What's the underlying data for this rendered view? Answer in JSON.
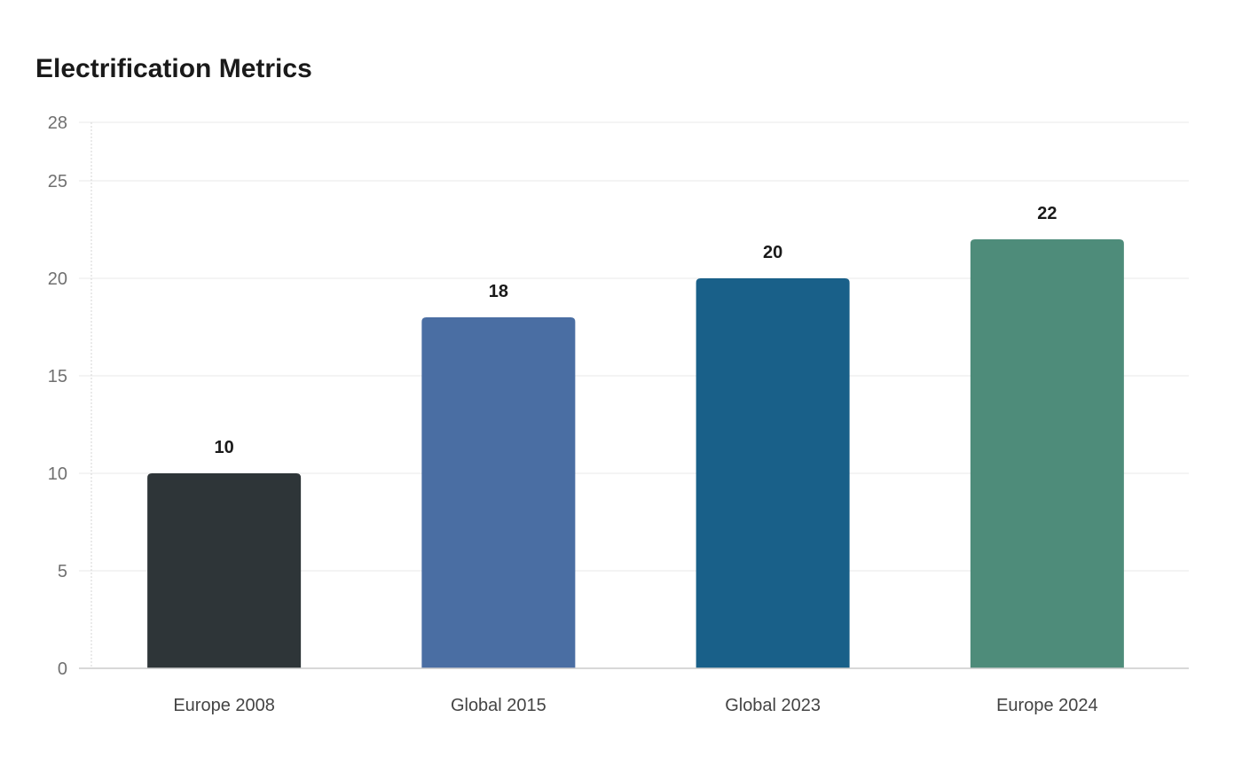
{
  "chart_data": {
    "type": "bar",
    "title": "Electrification Metrics",
    "categories": [
      "Europe 2008",
      "Global 2015",
      "Global 2023",
      "Europe 2024"
    ],
    "values": [
      10,
      18,
      20,
      22
    ],
    "data_labels": [
      "10",
      "18",
      "20",
      "22"
    ],
    "bar_colors": [
      "#2e3538",
      "#4a6ea3",
      "#196089",
      "#4e8c7a"
    ],
    "ylim": [
      0,
      28
    ],
    "yticks": [
      0,
      5,
      10,
      15,
      20,
      25,
      28
    ],
    "xlabel": "",
    "ylabel": "",
    "grid": "horizontal",
    "legend": "none"
  }
}
